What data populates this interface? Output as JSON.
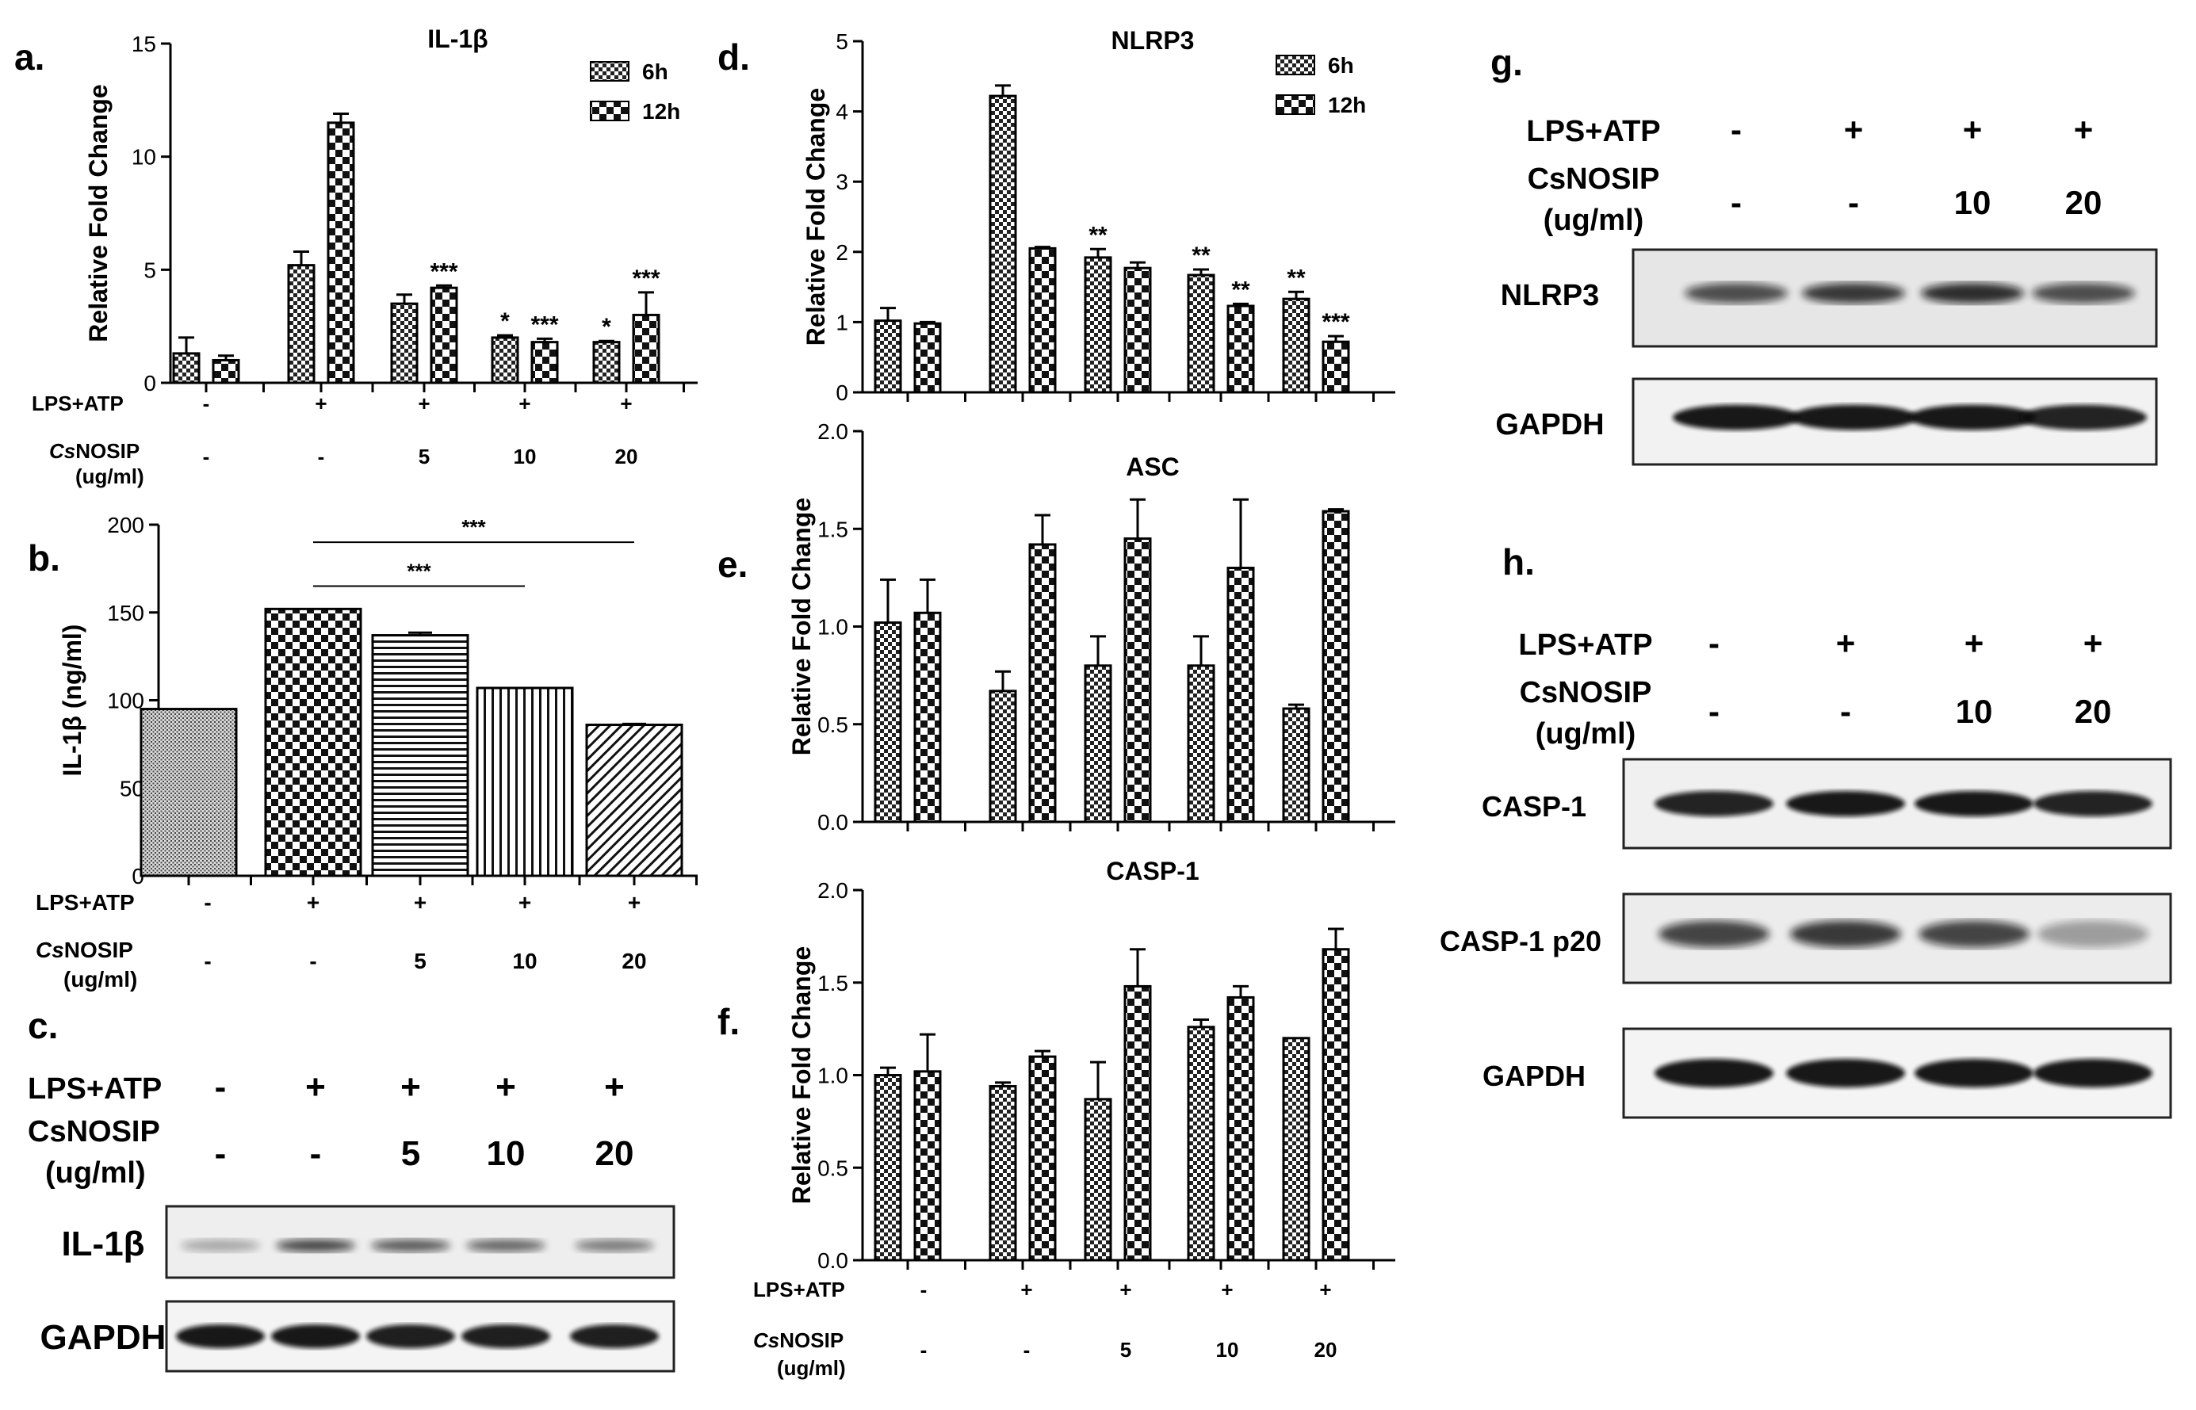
{
  "panel_letters": {
    "a": "a.",
    "b": "b.",
    "c": "c.",
    "d": "d.",
    "e": "e.",
    "f": "f.",
    "g": "g.",
    "h": "h."
  },
  "legend": {
    "s1": "6h",
    "s2": "12h"
  },
  "treat": {
    "lps_label": "LPS+ATP",
    "cs_italic": "Cs",
    "cs_rest": "NOSIP",
    "cs_full": "CsNOSIP",
    "unit": "(ug/ml)",
    "lps5": [
      "-",
      "+",
      "+",
      "+",
      "+"
    ],
    "cs5": [
      "-",
      "-",
      "5",
      "10",
      "20"
    ],
    "lps4": [
      "-",
      "+",
      "+",
      "+"
    ],
    "cs4": [
      "-",
      "-",
      "10",
      "20"
    ]
  },
  "blots": {
    "c": [
      "IL-1β",
      "GAPDH"
    ],
    "g": [
      "NLRP3",
      "GAPDH"
    ],
    "h": [
      "CASP-1",
      "CASP-1 p20",
      "GAPDH"
    ]
  },
  "chart_data": [
    {
      "id": "a",
      "type": "bar",
      "title": "IL-1β",
      "ylabel": "Relative Fold Change",
      "ylim": [
        0,
        15
      ],
      "yticks": [
        0,
        5,
        10,
        15
      ],
      "categories": [
        "1",
        "2",
        "3",
        "4",
        "5"
      ],
      "series": [
        {
          "name": "6h",
          "values": [
            1.3,
            5.2,
            3.5,
            2.0,
            1.8
          ],
          "errors": [
            0.7,
            0.6,
            0.4,
            0.1,
            0.05
          ],
          "sig": [
            "",
            "",
            "",
            "*",
            "*"
          ]
        },
        {
          "name": "12h",
          "values": [
            1.0,
            11.5,
            4.2,
            1.8,
            3.0
          ],
          "errors": [
            0.2,
            0.4,
            0.1,
            0.15,
            1.0
          ],
          "sig": [
            "",
            "",
            "***",
            "***",
            "***"
          ]
        }
      ]
    },
    {
      "id": "b",
      "type": "bar",
      "title": "",
      "ylabel": "IL-1β (ng/ml)",
      "ylim": [
        0,
        200
      ],
      "yticks": [
        0,
        50,
        100,
        150,
        200
      ],
      "categories": [
        "1",
        "2",
        "3",
        "4",
        "5"
      ],
      "series": [
        {
          "name": "",
          "values": [
            95,
            152,
            137,
            107,
            86
          ],
          "errors": [
            0,
            0,
            1.5,
            0,
            0.5
          ]
        }
      ],
      "brackets": [
        {
          "from": 1,
          "to": 4,
          "y": 190,
          "label": "***"
        },
        {
          "from": 1,
          "to": 3,
          "y": 165,
          "label": "***"
        }
      ]
    },
    {
      "id": "d",
      "type": "bar",
      "title": "NLRP3",
      "ylabel": "Relative Fold Change",
      "ylim": [
        0,
        5
      ],
      "yticks": [
        0,
        1,
        2,
        3,
        4,
        5
      ],
      "categories": [
        "1",
        "2",
        "3",
        "4",
        "5"
      ],
      "series": [
        {
          "name": "6h",
          "values": [
            1.02,
            4.22,
            1.92,
            1.67,
            1.33
          ],
          "errors": [
            0.18,
            0.15,
            0.12,
            0.08,
            0.1
          ],
          "sig": [
            "",
            "",
            "**",
            "**",
            "**"
          ]
        },
        {
          "name": "12h",
          "values": [
            0.98,
            2.05,
            1.77,
            1.23,
            0.72
          ],
          "errors": [
            0.02,
            0.02,
            0.08,
            0.03,
            0.08
          ],
          "sig": [
            "",
            "",
            "",
            "**",
            "***"
          ]
        }
      ]
    },
    {
      "id": "e",
      "type": "bar",
      "title": "ASC",
      "ylabel": "Relative Fold Change",
      "ylim": [
        0,
        2
      ],
      "yticks": [
        "0.0",
        "0.5",
        "1.0",
        "1.5",
        "2.0"
      ],
      "categories": [
        "1",
        "2",
        "3",
        "4",
        "5"
      ],
      "series": [
        {
          "name": "6h",
          "values": [
            1.02,
            0.67,
            0.8,
            0.8,
            0.58
          ],
          "errors": [
            0.22,
            0.1,
            0.15,
            0.15,
            0.02
          ]
        },
        {
          "name": "12h",
          "values": [
            1.07,
            1.42,
            1.45,
            1.3,
            1.59
          ],
          "errors": [
            0.17,
            0.15,
            0.2,
            0.35,
            0.01
          ]
        }
      ]
    },
    {
      "id": "f",
      "type": "bar",
      "title": "CASP-1",
      "ylabel": "Relative Fold Change",
      "ylim": [
        0,
        2
      ],
      "yticks": [
        "0.0",
        "0.5",
        "1.0",
        "1.5",
        "2.0"
      ],
      "categories": [
        "1",
        "2",
        "3",
        "4",
        "5"
      ],
      "series": [
        {
          "name": "6h",
          "values": [
            1.0,
            0.94,
            0.87,
            1.26,
            1.2
          ],
          "errors": [
            0.04,
            0.02,
            0.2,
            0.04,
            0.0
          ],
          "sig": []
        },
        {
          "name": "12h",
          "values": [
            1.02,
            1.1,
            1.48,
            1.42,
            1.68
          ],
          "errors": [
            0.2,
            0.03,
            0.2,
            0.06,
            0.11
          ],
          "sig": []
        }
      ]
    }
  ]
}
